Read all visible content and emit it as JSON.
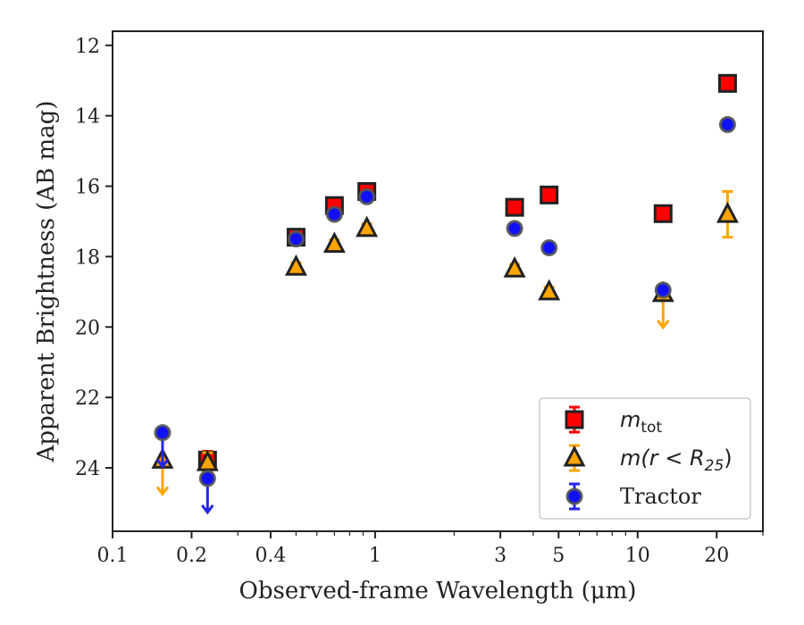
{
  "chart_data": {
    "type": "scatter",
    "title": "",
    "xlabel": "Observed-frame Wavelength (μm)",
    "ylabel": "Apparent Brightness (AB mag)",
    "x_scale": "log",
    "y_inverted": true,
    "xlim": [
      0.1,
      30
    ],
    "ylim": [
      25.8,
      11.6
    ],
    "x_ticks": [
      0.1,
      0.2,
      0.4,
      1,
      3,
      5,
      10,
      20
    ],
    "x_tick_labels": [
      "0.1",
      "0.2",
      "0.4",
      "1",
      "3",
      "5",
      "10",
      "20"
    ],
    "y_ticks": [
      12,
      14,
      16,
      18,
      20,
      22,
      24
    ],
    "y_tick_labels": [
      "12",
      "14",
      "16",
      "18",
      "20",
      "22",
      "24"
    ],
    "grid": false,
    "legend_position": "lower-right",
    "series": [
      {
        "name": "m_tot",
        "legend_label": {
          "base": "m",
          "sub": "tot"
        },
        "marker": "square",
        "color": "#ff0000",
        "err_color": "#ff0000",
        "points": [
          {
            "x": 0.23,
            "y": 23.78,
            "err": 0.25
          },
          {
            "x": 0.5,
            "y": 17.45,
            "err": 0.06
          },
          {
            "x": 0.7,
            "y": 16.55,
            "err": 0.08
          },
          {
            "x": 0.93,
            "y": 16.15,
            "err": 0.1
          },
          {
            "x": 3.4,
            "y": 16.6,
            "err": 0.04
          },
          {
            "x": 4.6,
            "y": 16.25,
            "err": 0.04
          },
          {
            "x": 12.5,
            "y": 16.78,
            "err": 0.04
          },
          {
            "x": 22,
            "y": 13.08,
            "err": 0.04
          }
        ]
      },
      {
        "name": "m(r<R25)",
        "legend_label": {
          "base": "m(r < R",
          "sub": "25",
          "tail": ")"
        },
        "marker": "triangle",
        "color": "#ffa500",
        "err_color": "#ffa500",
        "points": [
          {
            "x": 0.155,
            "y": 23.78,
            "upper_limit": true
          },
          {
            "x": 0.23,
            "y": 23.85,
            "err": 0.28
          },
          {
            "x": 0.5,
            "y": 18.3,
            "err": 0.05
          },
          {
            "x": 0.7,
            "y": 17.65,
            "err": 0.05
          },
          {
            "x": 0.93,
            "y": 17.2,
            "err": 0.05
          },
          {
            "x": 3.4,
            "y": 18.35,
            "err": 0.05
          },
          {
            "x": 4.6,
            "y": 19.0,
            "err": 0.05
          },
          {
            "x": 12.5,
            "y": 19.05,
            "upper_limit": true
          },
          {
            "x": 22,
            "y": 16.8,
            "err": 0.65
          }
        ]
      },
      {
        "name": "Tractor",
        "marker": "circle",
        "color": "#1010ff",
        "err_color": "#2525e6",
        "points": [
          {
            "x": 0.155,
            "y": 23.0,
            "upper_limit": true
          },
          {
            "x": 0.23,
            "y": 24.3,
            "upper_limit": true
          },
          {
            "x": 0.5,
            "y": 17.5,
            "err": 0.04
          },
          {
            "x": 0.7,
            "y": 16.8,
            "err": 0.04
          },
          {
            "x": 0.93,
            "y": 16.3,
            "err": 0.04
          },
          {
            "x": 3.4,
            "y": 17.2,
            "err": 0.04
          },
          {
            "x": 4.6,
            "y": 17.75,
            "err": 0.04
          },
          {
            "x": 12.5,
            "y": 18.95,
            "err": 0.04
          },
          {
            "x": 22,
            "y": 14.25,
            "err": 0.04
          }
        ]
      }
    ]
  }
}
